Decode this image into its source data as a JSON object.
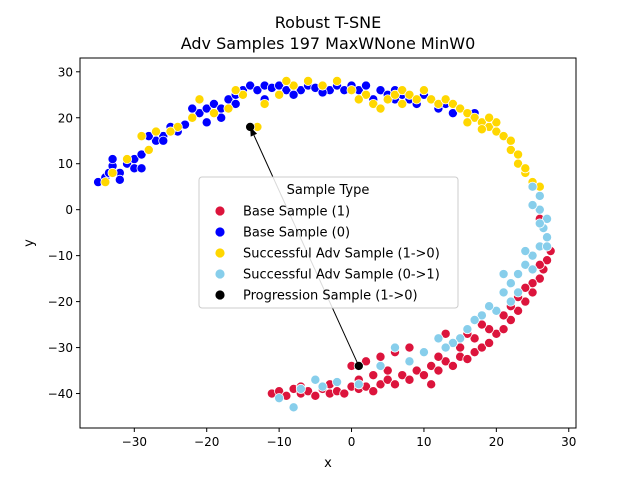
{
  "chart_data": {
    "type": "scatter",
    "title": "Robust T-SNE",
    "subtitle": "Adv Samples 197 MaxWNone MinW0",
    "xlabel": "x",
    "ylabel": "y",
    "xlim": [
      -37.5,
      31
    ],
    "ylim": [
      -47.5,
      33
    ],
    "xticks": [
      -30,
      -20,
      -10,
      0,
      10,
      20,
      30
    ],
    "yticks": [
      -40,
      -30,
      -20,
      -10,
      0,
      10,
      20,
      30
    ],
    "grid": false,
    "legend": {
      "title": "Sample Type",
      "placement": "center"
    },
    "series": [
      {
        "name": "Base Sample (1)",
        "color": "#dc143c",
        "points": [
          [
            -11,
            -40
          ],
          [
            -10,
            -39.5
          ],
          [
            -9,
            -40.5
          ],
          [
            -8,
            -39
          ],
          [
            -7,
            -40
          ],
          [
            -6,
            -39.5
          ],
          [
            -5,
            -40.5
          ],
          [
            -4,
            -39
          ],
          [
            -3,
            -40
          ],
          [
            -2,
            -39.5
          ],
          [
            -1,
            -40
          ],
          [
            0,
            -38.5
          ],
          [
            1,
            -39
          ],
          [
            2,
            -38.5
          ],
          [
            3,
            -39.5
          ],
          [
            4,
            -38
          ],
          [
            5,
            -37
          ],
          [
            6,
            -38
          ],
          [
            7,
            -36
          ],
          [
            8,
            -37
          ],
          [
            9,
            -35
          ],
          [
            10,
            -36
          ],
          [
            11,
            -34
          ],
          [
            12,
            -35
          ],
          [
            13,
            -33
          ],
          [
            14,
            -34
          ],
          [
            15,
            -32
          ],
          [
            16,
            -32.5
          ],
          [
            17,
            -31
          ],
          [
            18,
            -30
          ],
          [
            19,
            -29
          ],
          [
            20,
            -27
          ],
          [
            21,
            -26
          ],
          [
            22,
            -24
          ],
          [
            23,
            -22
          ],
          [
            24,
            -20
          ],
          [
            25,
            -18
          ],
          [
            26,
            -15
          ],
          [
            26.5,
            -13
          ],
          [
            27,
            -11
          ],
          [
            27.5,
            -9
          ],
          [
            27,
            -6
          ],
          [
            26.5,
            -4
          ],
          [
            26,
            -2
          ],
          [
            10,
            -31
          ],
          [
            8,
            -30
          ],
          [
            6,
            -31
          ],
          [
            4,
            -32
          ],
          [
            2,
            -33
          ],
          [
            0,
            -34
          ],
          [
            13,
            -27
          ],
          [
            14,
            -29
          ],
          [
            15,
            -30
          ],
          [
            17,
            -28
          ],
          [
            19,
            -26
          ],
          [
            21,
            -23
          ],
          [
            23,
            -19
          ],
          [
            25,
            -16
          ],
          [
            5,
            -35
          ],
          [
            3,
            -36
          ],
          [
            1,
            -37
          ],
          [
            -3,
            -38
          ],
          [
            -7,
            -38.5
          ],
          [
            12,
            -32
          ],
          [
            16,
            -27
          ],
          [
            18,
            -25
          ],
          [
            22,
            -21
          ],
          [
            24,
            -17
          ],
          [
            26,
            -12
          ],
          [
            11,
            -38
          ]
        ]
      },
      {
        "name": "Base Sample (0)",
        "color": "#0000ff",
        "points": [
          [
            -35,
            6
          ],
          [
            -34,
            7
          ],
          [
            -33.5,
            8
          ],
          [
            -33,
            9.5
          ],
          [
            -32,
            8
          ],
          [
            -31,
            10
          ],
          [
            -30,
            11
          ],
          [
            -29,
            12
          ],
          [
            -28,
            13
          ],
          [
            -27,
            15
          ],
          [
            -26,
            16
          ],
          [
            -25,
            17
          ],
          [
            -24,
            18
          ],
          [
            -23,
            18.5
          ],
          [
            -22,
            20
          ],
          [
            -21,
            21
          ],
          [
            -20,
            22
          ],
          [
            -19,
            23
          ],
          [
            -18,
            22
          ],
          [
            -17,
            24
          ],
          [
            -16,
            25
          ],
          [
            -15,
            26
          ],
          [
            -14,
            27
          ],
          [
            -13,
            26
          ],
          [
            -12,
            27
          ],
          [
            -11,
            26.5
          ],
          [
            -10,
            27
          ],
          [
            -9,
            26
          ],
          [
            -8,
            27
          ],
          [
            -7,
            26
          ],
          [
            -6,
            27
          ],
          [
            -5,
            26.5
          ],
          [
            -4,
            27
          ],
          [
            -3,
            26
          ],
          [
            -2,
            27
          ],
          [
            -1,
            26
          ],
          [
            0,
            27
          ],
          [
            1,
            26
          ],
          [
            2,
            25
          ],
          [
            3,
            24
          ],
          [
            4,
            26
          ],
          [
            5,
            25
          ],
          [
            6,
            24
          ],
          [
            7,
            25
          ],
          [
            8,
            24
          ],
          [
            9,
            23
          ],
          [
            10,
            25
          ],
          [
            11,
            24
          ],
          [
            12,
            22
          ],
          [
            13,
            23
          ],
          [
            15,
            22
          ],
          [
            17,
            21
          ],
          [
            -20,
            19
          ],
          [
            -22,
            22
          ],
          [
            -24,
            17
          ],
          [
            -26,
            15
          ],
          [
            -30,
            9
          ],
          [
            -32,
            6.5
          ],
          [
            -18,
            20
          ],
          [
            -16,
            23
          ],
          [
            -28,
            16
          ],
          [
            -33,
            11
          ],
          [
            -12,
            24
          ],
          [
            -8,
            25
          ],
          [
            -4,
            25.5
          ],
          [
            2,
            27
          ],
          [
            6,
            26
          ],
          [
            14,
            21
          ],
          [
            -29,
            9
          ],
          [
            -25,
            18
          ]
        ]
      },
      {
        "name": "Successful Adv Sample (1->0)",
        "color": "#ffd700",
        "points": [
          [
            -34,
            6
          ],
          [
            -33,
            8
          ],
          [
            -31,
            11
          ],
          [
            -28,
            13
          ],
          [
            -27,
            17
          ],
          [
            -24,
            18
          ],
          [
            -21,
            24
          ],
          [
            -19,
            21
          ],
          [
            -17,
            22
          ],
          [
            -15,
            25
          ],
          [
            -13,
            18
          ],
          [
            -12,
            23
          ],
          [
            -10,
            25
          ],
          [
            -8,
            27
          ],
          [
            -6,
            28
          ],
          [
            -4,
            27
          ],
          [
            -2,
            28
          ],
          [
            0,
            26
          ],
          [
            2,
            25
          ],
          [
            3,
            23
          ],
          [
            4,
            22
          ],
          [
            5,
            24
          ],
          [
            6,
            25
          ],
          [
            7,
            26
          ],
          [
            8,
            25
          ],
          [
            9,
            24
          ],
          [
            10,
            26
          ],
          [
            11,
            24
          ],
          [
            12,
            23
          ],
          [
            13,
            24
          ],
          [
            14,
            23
          ],
          [
            15,
            22
          ],
          [
            16,
            21
          ],
          [
            17,
            20
          ],
          [
            18,
            19
          ],
          [
            19,
            18
          ],
          [
            20,
            17
          ],
          [
            21,
            16
          ],
          [
            22,
            13
          ],
          [
            23,
            10
          ],
          [
            24,
            8
          ],
          [
            25,
            6
          ],
          [
            26,
            5
          ],
          [
            18,
            17.5
          ],
          [
            20,
            19
          ],
          [
            22,
            15
          ],
          [
            -29,
            16
          ],
          [
            -25,
            17
          ],
          [
            -22,
            20
          ],
          [
            -16,
            26
          ],
          [
            -9,
            28
          ],
          [
            1,
            24
          ],
          [
            7,
            23
          ],
          [
            16,
            19
          ],
          [
            19,
            20
          ],
          [
            23,
            12
          ],
          [
            24,
            9
          ]
        ]
      },
      {
        "name": "Successful Adv Sample (0->1)",
        "color": "#87ceeb",
        "points": [
          [
            25,
            5
          ],
          [
            26,
            3
          ],
          [
            26,
            0
          ],
          [
            27,
            -2
          ],
          [
            26.5,
            -4
          ],
          [
            27,
            -6
          ],
          [
            26,
            -8
          ],
          [
            25,
            -10
          ],
          [
            24,
            -12
          ],
          [
            23,
            -14
          ],
          [
            22,
            -16
          ],
          [
            21,
            -18
          ],
          [
            22,
            -20
          ],
          [
            20,
            -22
          ],
          [
            18,
            -23
          ],
          [
            17,
            -24
          ],
          [
            16,
            -26
          ],
          [
            15,
            -28
          ],
          [
            14,
            -29
          ],
          [
            13,
            -30
          ],
          [
            10,
            -31
          ],
          [
            8,
            -33
          ],
          [
            6,
            -30
          ],
          [
            4,
            -34
          ],
          [
            -2,
            -37.5
          ],
          [
            -5,
            -37
          ],
          [
            -7,
            -39
          ],
          [
            -8,
            -43
          ],
          [
            -10,
            -41
          ],
          [
            24,
            -9
          ],
          [
            26,
            -3
          ],
          [
            25,
            -13
          ],
          [
            19,
            -21
          ],
          [
            12,
            -28
          ],
          [
            1,
            -38
          ],
          [
            -4,
            -38.5
          ],
          [
            27,
            -8
          ],
          [
            23,
            -18
          ],
          [
            21,
            -14
          ],
          [
            25,
            1
          ]
        ]
      },
      {
        "name": "Progression Sample (1->0)",
        "color": "#000000",
        "points": [
          [
            -14,
            18
          ],
          [
            1,
            -34
          ]
        ]
      }
    ],
    "annotations": [
      {
        "type": "arrow",
        "from": [
          1,
          -34
        ],
        "to": [
          -14,
          18
        ]
      }
    ]
  }
}
